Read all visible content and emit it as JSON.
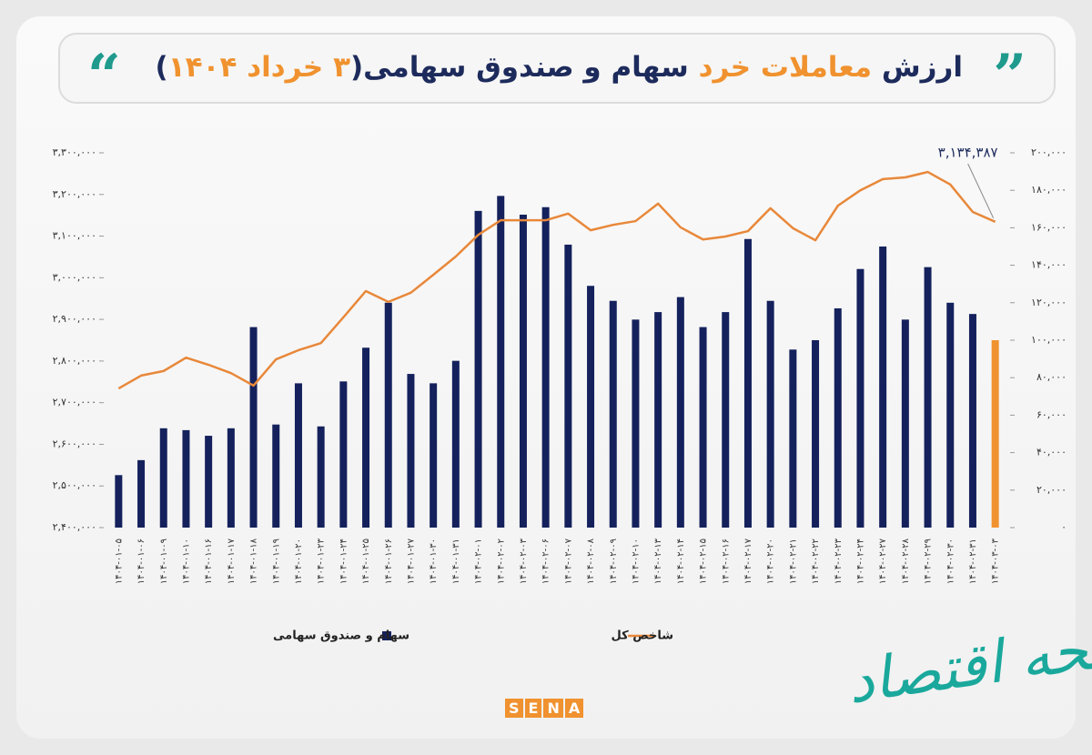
{
  "chart_data": {
    "type": "combo",
    "title_parts": [
      "ارزش ",
      "معاملات خرد",
      " سهام و صندوق سهامی(",
      "۳ خرداد ۱۴۰۴",
      ")"
    ],
    "categories": [
      "۱۴۰۴-۰۱-۰۵",
      "۱۴۰۴-۰۱-۰۶",
      "۱۴۰۴-۰۱-۰۹",
      "۱۴۰۴-۰۱-۱۰",
      "۱۴۰۴-۰۱-۱۶",
      "۱۴۰۴-۰۱-۱۷",
      "۱۴۰۴-۰۱-۱۸",
      "۱۴۰۴-۰۱-۱۹",
      "۱۴۰۴-۰۱-۲۰",
      "۱۴۰۴-۰۱-۲۳",
      "۱۴۰۴-۰۱-۲۴",
      "۱۴۰۴-۰۱-۲۵",
      "۱۴۰۴-۰۱-۲۶",
      "۱۴۰۴-۰۱-۲۷",
      "۱۴۰۴-۰۱-۳۰",
      "۱۴۰۴-۰۱-۳۱",
      "۱۴۰۴-۰۲-۰۱",
      "۱۴۰۴-۰۲-۰۲",
      "۱۴۰۴-۰۲-۰۳",
      "۱۴۰۴-۰۲-۰۶",
      "۱۴۰۴-۰۲-۰۷",
      "۱۴۰۴-۰۲-۰۸",
      "۱۴۰۴-۰۲-۰۹",
      "۱۴۰۴-۰۲-۱۰",
      "۱۴۰۴-۰۲-۱۳",
      "۱۴۰۴-۰۲-۱۴",
      "۱۴۰۴-۰۲-۱۵",
      "۱۴۰۴-۰۲-۱۶",
      "۱۴۰۴-۰۲-۱۷",
      "۱۴۰۴-۰۲-۲۰",
      "۱۴۰۴-۰۲-۲۱",
      "۱۴۰۴-۰۲-۲۲",
      "۱۴۰۴-۰۲-۲۳",
      "۱۴۰۴-۰۲-۲۴",
      "۱۴۰۴-۰۲-۲۷",
      "۱۴۰۴-۰۲-۲۸",
      "۱۴۰۴-۰۲-۲۹",
      "۱۴۰۴-۰۲-۳۰",
      "۱۴۰۴-۰۲-۳۱",
      "۱۴۰۴-۰۳-۰۳"
    ],
    "series": [
      {
        "name": "سهام و صندوق سهامی",
        "type": "bar",
        "axis": "y2",
        "color": "#14215c",
        "colors": [
          "#14215c",
          "#14215c",
          "#14215c",
          "#14215c",
          "#14215c",
          "#14215c",
          "#14215c",
          "#14215c",
          "#14215c",
          "#14215c",
          "#14215c",
          "#14215c",
          "#14215c",
          "#14215c",
          "#14215c",
          "#14215c",
          "#14215c",
          "#14215c",
          "#14215c",
          "#14215c",
          "#14215c",
          "#14215c",
          "#14215c",
          "#14215c",
          "#14215c",
          "#14215c",
          "#14215c",
          "#14215c",
          "#14215c",
          "#14215c",
          "#14215c",
          "#14215c",
          "#14215c",
          "#14215c",
          "#14215c",
          "#14215c",
          "#14215c",
          "#14215c",
          "#14215c",
          "#f0922f"
        ],
        "values": [
          28000,
          36000,
          53000,
          52000,
          49000,
          53000,
          107000,
          55000,
          77000,
          54000,
          78000,
          96000,
          120000,
          82000,
          77000,
          89000,
          169000,
          177000,
          167000,
          171000,
          151000,
          129000,
          121000,
          111000,
          115000,
          123000,
          107000,
          115000,
          154000,
          121000,
          95000,
          100000,
          117000,
          138000,
          150000,
          111000,
          139000,
          120000,
          114000,
          100000
        ]
      },
      {
        "name": "شاخص کل",
        "type": "line",
        "color": "#e8883a",
        "values": [
          2734000,
          2765000,
          2776000,
          2808000,
          2791000,
          2771000,
          2741000,
          2804000,
          2826000,
          2843000,
          2905000,
          2968000,
          2942000,
          2964000,
          3007000,
          3051000,
          3103000,
          3138000,
          3138000,
          3138000,
          3154000,
          3114000,
          3127000,
          3136000,
          3178000,
          3121000,
          3092000,
          3099000,
          3112000,
          3167000,
          3119000,
          3090000,
          3173000,
          3210000,
          3237000,
          3241000,
          3254000,
          3224000,
          3158000,
          3134387
        ],
        "value_labels": [
          null,
          null,
          null,
          null,
          null,
          null,
          null,
          null,
          null,
          null,
          null,
          null,
          null,
          null,
          null,
          null,
          null,
          null,
          null,
          null,
          null,
          null,
          null,
          null,
          null,
          null,
          null,
          null,
          null,
          null,
          null,
          null,
          null,
          null,
          null,
          null,
          null,
          null,
          null,
          "۳,۱۳۴,۳۸۷"
        ]
      }
    ],
    "ylim": [
      2400000,
      3300000
    ],
    "yticks": [
      {
        "value": 2400000,
        "label": "۲,۴۰۰,۰۰۰"
      },
      {
        "value": 2500000,
        "label": "۲,۵۰۰,۰۰۰"
      },
      {
        "value": 2600000,
        "label": "۲,۶۰۰,۰۰۰"
      },
      {
        "value": 2700000,
        "label": "۲,۷۰۰,۰۰۰"
      },
      {
        "value": 2800000,
        "label": "۲,۸۰۰,۰۰۰"
      },
      {
        "value": 2900000,
        "label": "۲,۹۰۰,۰۰۰"
      },
      {
        "value": 3000000,
        "label": "۳,۰۰۰,۰۰۰"
      },
      {
        "value": 3100000,
        "label": "۳,۱۰۰,۰۰۰"
      },
      {
        "value": 3200000,
        "label": "۳,۲۰۰,۰۰۰"
      },
      {
        "value": 3300000,
        "label": "۳,۳۰۰,۰۰۰"
      }
    ],
    "y2lim": [
      0,
      200000
    ],
    "y2ticks": [
      {
        "value": 0,
        "label": "۰"
      },
      {
        "value": 20000,
        "label": "۲۰,۰۰۰"
      },
      {
        "value": 40000,
        "label": "۴۰,۰۰۰"
      },
      {
        "value": 60000,
        "label": "۶۰,۰۰۰"
      },
      {
        "value": 80000,
        "label": "۸۰,۰۰۰"
      },
      {
        "value": 100000,
        "label": "۱۰۰,۰۰۰"
      },
      {
        "value": 120000,
        "label": "۱۲۰,۰۰۰"
      },
      {
        "value": 140000,
        "label": "۱۴۰,۰۰۰"
      },
      {
        "value": 160000,
        "label": "۱۶۰,۰۰۰"
      },
      {
        "value": 180000,
        "label": "۱۸۰,۰۰۰"
      },
      {
        "value": 200000,
        "label": "۲۰۰,۰۰۰"
      }
    ],
    "grid": false,
    "legend": "bottom",
    "logo": "SENA",
    "watermark": "صفحه اقتصاد"
  }
}
